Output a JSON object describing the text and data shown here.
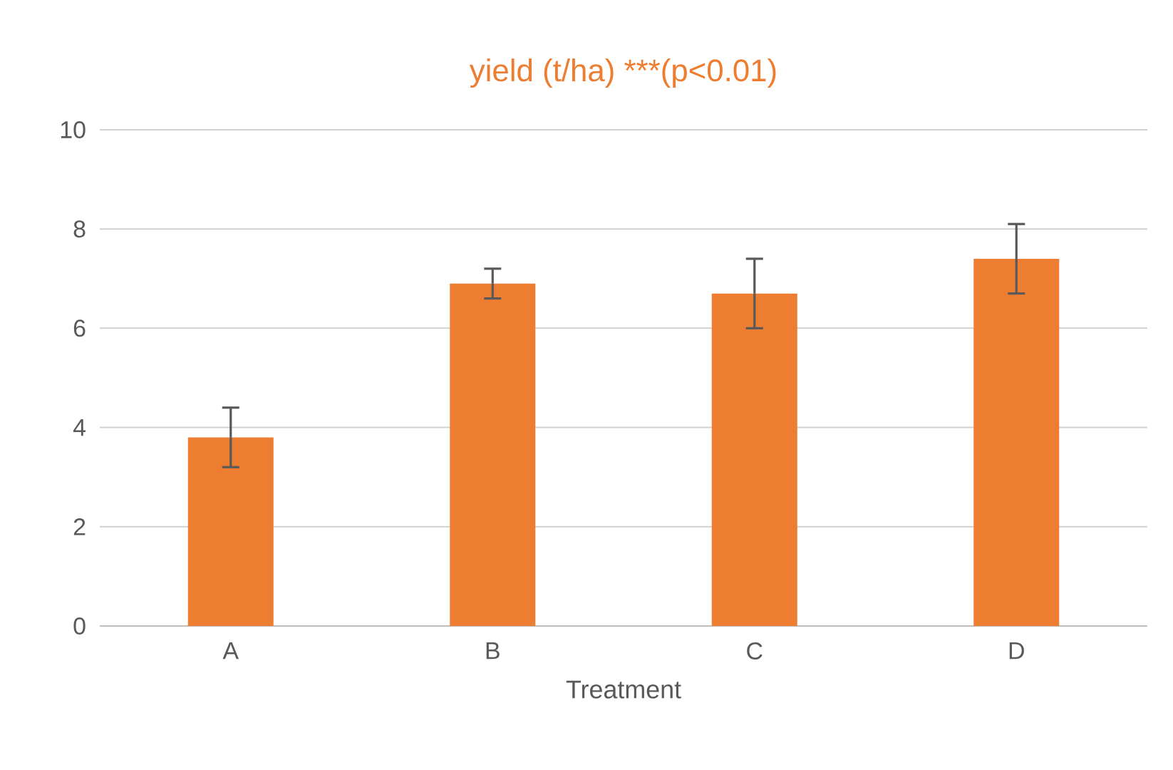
{
  "chart_data": {
    "type": "bar",
    "title": "yield (t/ha) ***(p<0.01)",
    "xlabel": "Treatment",
    "categories": [
      "A",
      "B",
      "C",
      "D"
    ],
    "values": [
      3.8,
      6.9,
      6.7,
      7.4
    ],
    "errors": [
      0.6,
      0.3,
      0.7,
      0.7
    ],
    "color": "#ed7d31",
    "ylim": [
      0,
      10
    ],
    "yticks": [
      0,
      2,
      4,
      6,
      8,
      10
    ],
    "grid": "y"
  }
}
